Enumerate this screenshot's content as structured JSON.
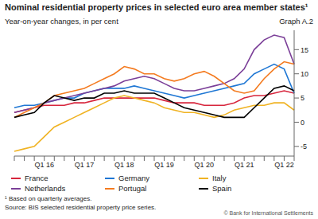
{
  "chart_data": {
    "type": "line",
    "title": "Nominal residential property prices in selected euro area member states¹",
    "subtitle": "Year-on-year changes, in per cent",
    "graph_label": "Graph A.2",
    "footnote": "¹ Based on quarterly averages.",
    "source": "Source: BIS selected residential property price series.",
    "credit": "© Bank for International Settlements",
    "categories": [
      null,
      null,
      null,
      "Q1 16",
      null,
      null,
      null,
      "Q1 17",
      null,
      null,
      null,
      "Q1 18",
      null,
      null,
      null,
      "Q1 19",
      null,
      null,
      null,
      "Q1 20",
      null,
      null,
      null,
      "Q1 21",
      null,
      null,
      null,
      "Q1 22",
      null
    ],
    "series": [
      {
        "name": "France",
        "color": "#d7263d",
        "values": [
          2,
          2.5,
          3,
          3.5,
          3.5,
          3.5,
          4,
          4,
          4.5,
          5,
          5,
          5,
          5,
          5,
          5,
          4.5,
          4,
          4,
          4,
          3.5,
          3.5,
          3.5,
          4,
          5,
          5.5,
          5.5,
          6,
          6.5,
          6
        ]
      },
      {
        "name": "Germany",
        "color": "#1f77d4",
        "values": [
          3,
          3.5,
          3.5,
          4,
          4.5,
          5,
          5,
          6,
          6.5,
          7,
          7,
          7,
          7.5,
          7,
          6.5,
          6,
          5.5,
          5,
          5.5,
          6,
          6.5,
          7,
          7.5,
          8,
          10,
          11,
          12,
          11,
          6
        ]
      },
      {
        "name": "Italy",
        "color": "#f0b323",
        "values": [
          -6,
          -5.5,
          -5,
          -3,
          -1,
          0,
          1,
          2,
          3,
          4,
          5,
          5.5,
          5,
          4.5,
          4,
          3,
          2.5,
          2,
          2,
          1.5,
          1,
          1.5,
          2.5,
          3,
          3.5,
          3.5,
          4,
          4,
          2.5
        ]
      },
      {
        "name": "Netherlands",
        "color": "#7b3f98",
        "values": [
          2,
          2.5,
          3,
          4,
          4.5,
          5,
          5.5,
          6,
          6.5,
          7,
          7.5,
          8.5,
          9,
          9.5,
          9,
          8,
          7,
          6.5,
          6.5,
          7,
          7.5,
          8,
          9,
          11,
          15,
          17,
          18,
          17.5,
          12
        ]
      },
      {
        "name": "Portugal",
        "color": "#f47b20",
        "values": [
          1,
          2,
          3,
          4,
          5.5,
          6,
          6.5,
          7,
          8,
          9,
          10,
          11.5,
          11,
          10,
          10,
          9,
          8.5,
          9,
          10,
          10.5,
          9.5,
          8,
          6.5,
          6,
          6.5,
          9,
          11,
          12.5,
          12
        ]
      },
      {
        "name": "Spain",
        "color": "#000000",
        "values": [
          1,
          1.5,
          2,
          4,
          5.5,
          5,
          4.5,
          5,
          5,
          6,
          6,
          6.5,
          6,
          6,
          6,
          5,
          4,
          3,
          2.5,
          2,
          1.5,
          1,
          1,
          1,
          3,
          5,
          7,
          7.5,
          6.5
        ]
      }
    ],
    "ylim": [
      -7,
      19
    ],
    "yticks": [
      -5,
      0,
      5,
      10,
      15
    ],
    "grid": false,
    "legend": "bottom"
  }
}
